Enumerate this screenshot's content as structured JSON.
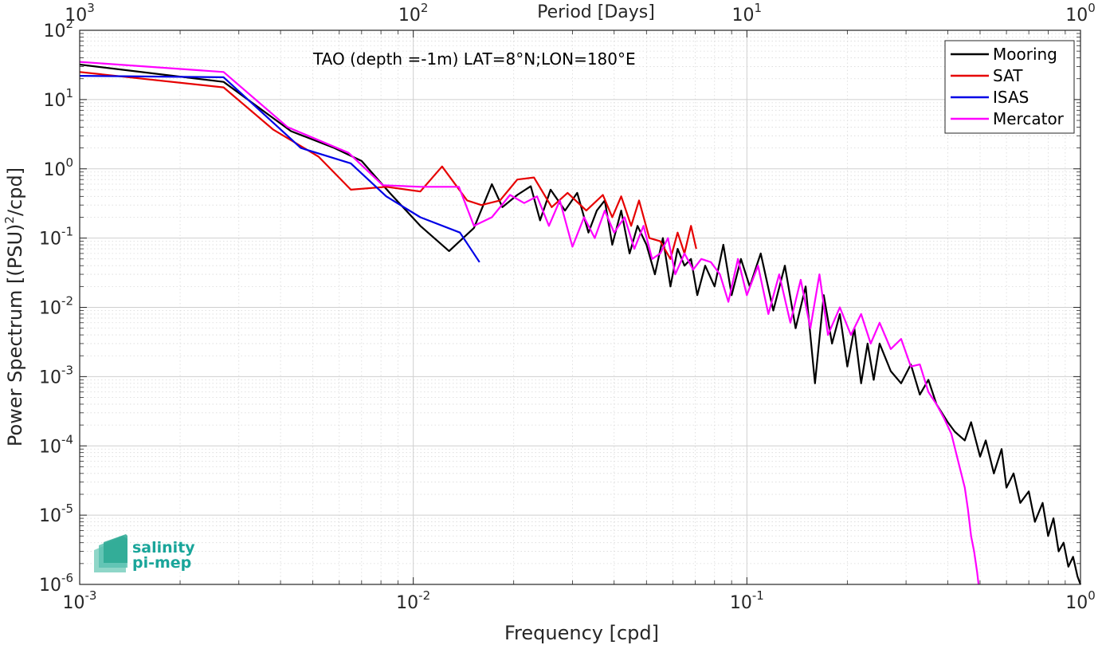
{
  "chart_data": {
    "type": "line",
    "title": "",
    "annotation": "TAO (depth =-1m) LAT=8°N;LON=180°E",
    "xlabel": "Frequency [cpd]",
    "ylabel_main": "Power Spectrum [(PSU)",
    "ylabel_sup": "2",
    "ylabel_tail": "/cpd]",
    "top_xlabel": "Period [Days]",
    "xscale": "log",
    "yscale": "log",
    "xlim": [
      0.001,
      1
    ],
    "ylim": [
      1e-06,
      100
    ],
    "grid": true,
    "legend_position": "top-right",
    "x_ticks": [
      {
        "base": "10",
        "exp": "-3",
        "value": 0.001
      },
      {
        "base": "10",
        "exp": "-2",
        "value": 0.01
      },
      {
        "base": "10",
        "exp": "-1",
        "value": 0.1
      },
      {
        "base": "10",
        "exp": "0",
        "value": 1
      }
    ],
    "y_ticks": [
      {
        "base": "10",
        "exp": "2",
        "value": 100
      },
      {
        "base": "10",
        "exp": "1",
        "value": 10
      },
      {
        "base": "10",
        "exp": "0",
        "value": 1
      },
      {
        "base": "10",
        "exp": "-1",
        "value": 0.1
      },
      {
        "base": "10",
        "exp": "-2",
        "value": 0.01
      },
      {
        "base": "10",
        "exp": "-3",
        "value": 0.001
      },
      {
        "base": "10",
        "exp": "-4",
        "value": 0.0001
      },
      {
        "base": "10",
        "exp": "-5",
        "value": 1e-05
      },
      {
        "base": "10",
        "exp": "-6",
        "value": 1e-06
      }
    ],
    "top_ticks": [
      {
        "base": "10",
        "exp": "3",
        "freq": 0.001
      },
      {
        "base": "10",
        "exp": "2",
        "freq": 0.01
      },
      {
        "base": "10",
        "exp": "1",
        "freq": 0.1
      },
      {
        "base": "10",
        "exp": "0",
        "freq": 1
      }
    ],
    "series": [
      {
        "name": "Mooring",
        "color": "#000000",
        "x": [
          0.001,
          0.0027,
          0.0043,
          0.0058,
          0.007,
          0.0085,
          0.0105,
          0.0128,
          0.0152,
          0.0172,
          0.0185,
          0.0205,
          0.0225,
          0.024,
          0.0258,
          0.0285,
          0.031,
          0.0335,
          0.0355,
          0.0375,
          0.0395,
          0.042,
          0.0445,
          0.047,
          0.05,
          0.053,
          0.056,
          0.059,
          0.062,
          0.065,
          0.068,
          0.071,
          0.075,
          0.08,
          0.085,
          0.09,
          0.096,
          0.102,
          0.11,
          0.12,
          0.13,
          0.14,
          0.15,
          0.16,
          0.17,
          0.18,
          0.19,
          0.2,
          0.21,
          0.22,
          0.23,
          0.24,
          0.25,
          0.27,
          0.29,
          0.31,
          0.33,
          0.35,
          0.37,
          0.4,
          0.42,
          0.45,
          0.47,
          0.5,
          0.52,
          0.55,
          0.58,
          0.6,
          0.63,
          0.66,
          0.7,
          0.73,
          0.77,
          0.8,
          0.83,
          0.86,
          0.89,
          0.92,
          0.95,
          0.98,
          1.0
        ],
        "y": [
          32,
          18,
          3.5,
          2.0,
          1.3,
          0.45,
          0.15,
          0.065,
          0.14,
          0.6,
          0.28,
          0.42,
          0.56,
          0.18,
          0.5,
          0.25,
          0.45,
          0.12,
          0.25,
          0.35,
          0.08,
          0.25,
          0.06,
          0.15,
          0.08,
          0.03,
          0.1,
          0.02,
          0.07,
          0.04,
          0.05,
          0.015,
          0.04,
          0.02,
          0.08,
          0.015,
          0.05,
          0.02,
          0.06,
          0.009,
          0.04,
          0.005,
          0.02,
          0.0008,
          0.015,
          0.003,
          0.008,
          0.0014,
          0.005,
          0.0008,
          0.003,
          0.0009,
          0.003,
          0.0012,
          0.0008,
          0.0015,
          0.00055,
          0.0009,
          0.0004,
          0.00022,
          0.00016,
          0.00012,
          0.00022,
          7e-05,
          0.00012,
          4e-05,
          9e-05,
          2.5e-05,
          4e-05,
          1.5e-05,
          2.2e-05,
          8e-06,
          1.5e-05,
          5e-06,
          9e-06,
          3e-06,
          4e-06,
          1.8e-06,
          2.5e-06,
          1.3e-06,
          1e-06
        ]
      },
      {
        "name": "SAT",
        "color": "#e60000",
        "x": [
          0.001,
          0.0027,
          0.0038,
          0.0052,
          0.0065,
          0.0083,
          0.0105,
          0.0122,
          0.0145,
          0.016,
          0.0182,
          0.0205,
          0.023,
          0.026,
          0.029,
          0.033,
          0.037,
          0.0395,
          0.042,
          0.045,
          0.0475,
          0.051,
          0.055,
          0.059,
          0.062,
          0.065,
          0.068,
          0.0705
        ],
        "y": [
          25,
          15,
          3.7,
          1.5,
          0.5,
          0.55,
          0.47,
          1.08,
          0.35,
          0.3,
          0.35,
          0.7,
          0.75,
          0.28,
          0.45,
          0.25,
          0.42,
          0.2,
          0.4,
          0.15,
          0.35,
          0.1,
          0.09,
          0.05,
          0.12,
          0.06,
          0.15,
          0.07
        ]
      },
      {
        "name": "ISAS",
        "color": "#0000e6",
        "x": [
          0.001,
          0.0027,
          0.0046,
          0.0065,
          0.0083,
          0.0105,
          0.0138,
          0.0158
        ],
        "y": [
          22,
          21,
          2.0,
          1.2,
          0.4,
          0.2,
          0.12,
          0.045
        ]
      },
      {
        "name": "Mercator",
        "color": "#ff00ff",
        "x": [
          0.001,
          0.0027,
          0.0042,
          0.0064,
          0.0081,
          0.0105,
          0.0137,
          0.0152,
          0.0172,
          0.0195,
          0.0215,
          0.0235,
          0.0255,
          0.0275,
          0.03,
          0.0325,
          0.035,
          0.0375,
          0.04,
          0.043,
          0.046,
          0.049,
          0.052,
          0.055,
          0.058,
          0.061,
          0.065,
          0.069,
          0.073,
          0.078,
          0.083,
          0.088,
          0.094,
          0.1,
          0.108,
          0.116,
          0.125,
          0.135,
          0.145,
          0.155,
          0.165,
          0.175,
          0.19,
          0.205,
          0.22,
          0.235,
          0.25,
          0.27,
          0.29,
          0.31,
          0.33,
          0.35,
          0.37,
          0.39,
          0.41,
          0.43,
          0.45,
          0.46,
          0.47,
          0.48,
          0.49,
          0.495
        ],
        "y": [
          35,
          25,
          4.0,
          1.7,
          0.58,
          0.55,
          0.55,
          0.15,
          0.2,
          0.42,
          0.32,
          0.4,
          0.15,
          0.35,
          0.075,
          0.2,
          0.1,
          0.25,
          0.12,
          0.2,
          0.07,
          0.15,
          0.05,
          0.06,
          0.1,
          0.03,
          0.06,
          0.035,
          0.05,
          0.045,
          0.03,
          0.012,
          0.05,
          0.015,
          0.04,
          0.008,
          0.03,
          0.006,
          0.025,
          0.005,
          0.03,
          0.004,
          0.01,
          0.004,
          0.008,
          0.003,
          0.006,
          0.0025,
          0.0035,
          0.0014,
          0.0015,
          0.0006,
          0.0004,
          0.00025,
          0.00015,
          6e-05,
          2.5e-05,
          1.2e-05,
          5e-06,
          3e-06,
          1.5e-06,
          1e-06
        ]
      }
    ]
  },
  "logo": {
    "line1": "salinity",
    "line2": "pi-mep"
  }
}
